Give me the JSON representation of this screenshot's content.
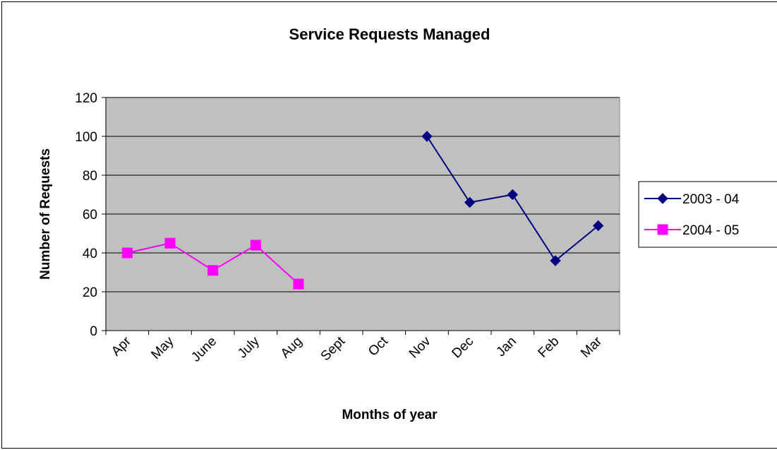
{
  "chart_data": {
    "type": "line",
    "title": "Service Requests Managed",
    "x_label": "Months of year",
    "y_label": "Number of Requests",
    "categories": [
      "Apr",
      "May",
      "June",
      "July",
      "Aug",
      "Sept",
      "Oct",
      "Nov",
      "Dec",
      "Jan",
      "Feb",
      "Mar"
    ],
    "series": [
      {
        "name": "2003 - 04",
        "color": "#000080",
        "marker": "diamond",
        "values": [
          null,
          null,
          null,
          null,
          null,
          null,
          null,
          100,
          66,
          70,
          36,
          54
        ]
      },
      {
        "name": "2004 - 05",
        "color": "#ff00ff",
        "marker": "square",
        "values": [
          40,
          45,
          31,
          44,
          24,
          null,
          null,
          null,
          null,
          null,
          null,
          null
        ]
      }
    ],
    "ylim": [
      0,
      120
    ],
    "yticks": [
      0,
      20,
      40,
      60,
      80,
      100,
      120
    ],
    "grid": true,
    "legend": "right",
    "plot_background": "#c0c0c0"
  }
}
